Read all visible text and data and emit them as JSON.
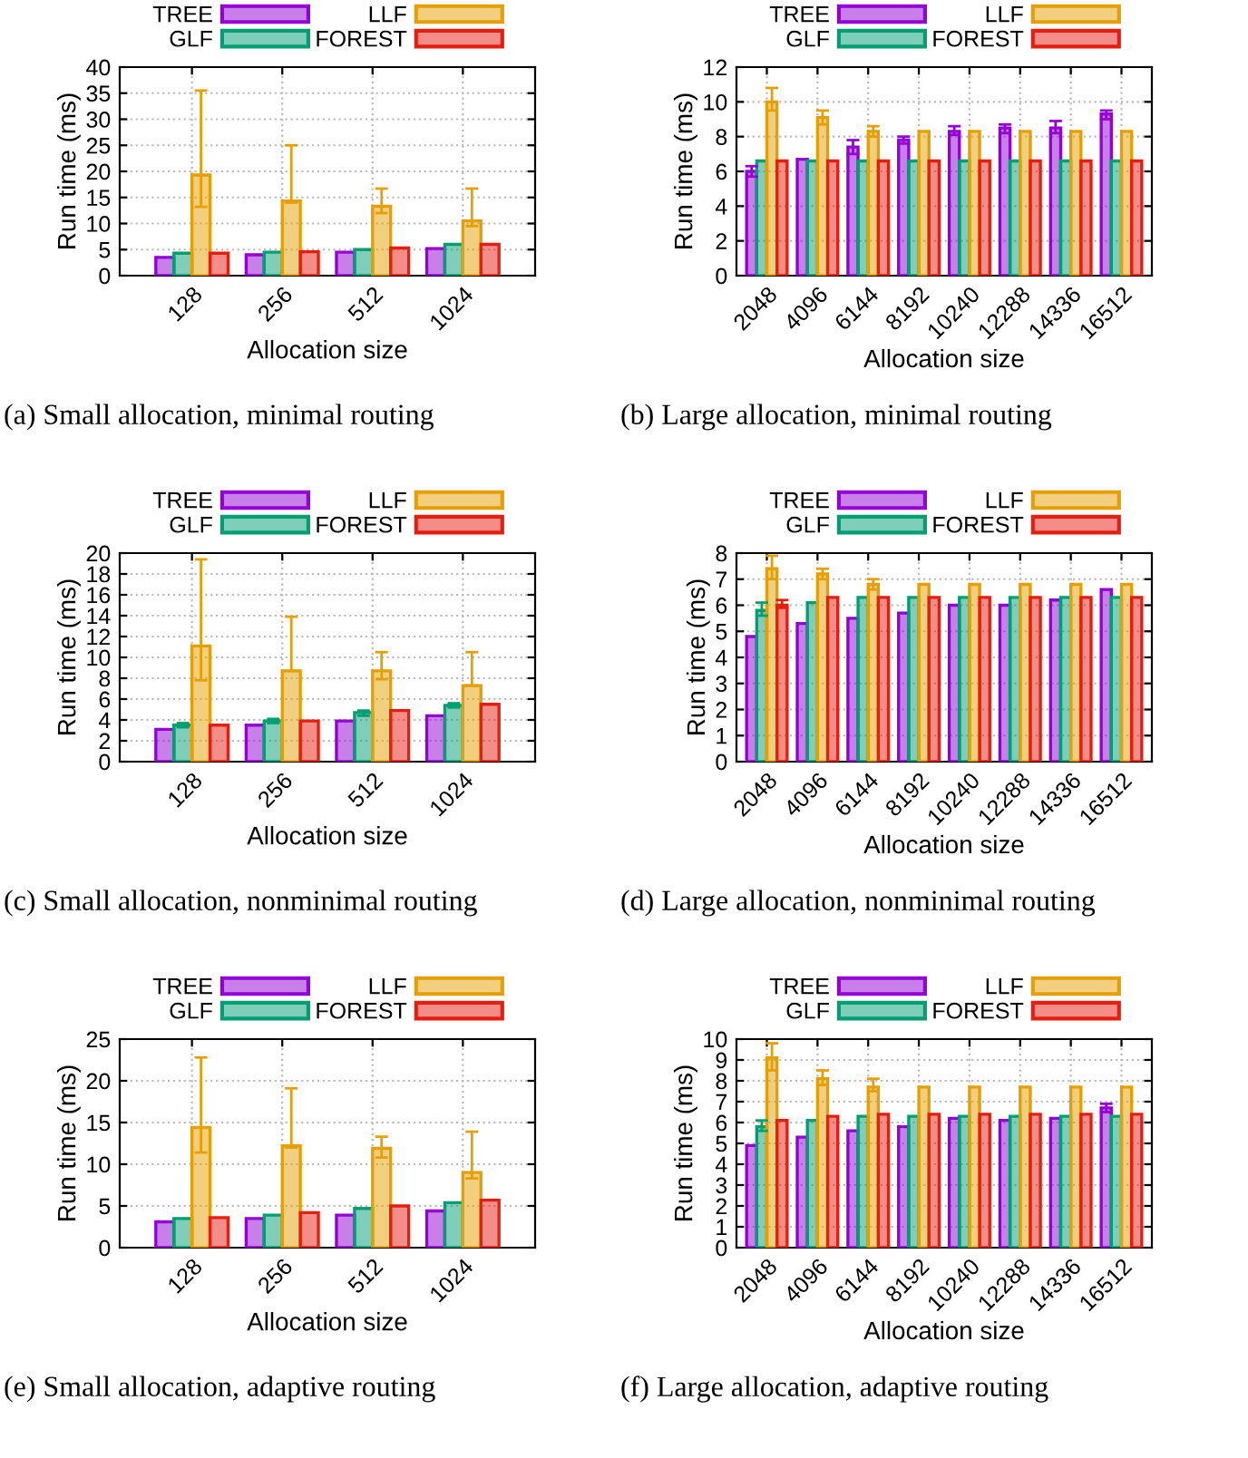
{
  "chart_data": [
    {
      "type": "bar",
      "categories": [
        "128",
        "256",
        "512",
        "1024"
      ],
      "xlabel": "Allocation size",
      "ylabel": "Run time (ms)",
      "ylim": [
        0,
        40
      ],
      "yticks": [
        0,
        5,
        10,
        15,
        20,
        25,
        30,
        35,
        40
      ],
      "grid": true,
      "legend": "top",
      "annotations": [
        "(a) Small allocation, minimal routing"
      ],
      "series": [
        {
          "name": "TREE",
          "color": "#9400d3",
          "values": [
            3.5,
            4.0,
            4.5,
            5.2
          ]
        },
        {
          "name": "GLF",
          "color": "#009e73",
          "values": [
            4.3,
            4.5,
            5.0,
            6.0
          ]
        },
        {
          "name": "LLF",
          "color": "#e69f00",
          "values": [
            19.3,
            14.3,
            13.3,
            10.5
          ],
          "errors": [
            [
              13.2,
              35.5
            ],
            [
              14.0,
              25.0
            ],
            [
              12.0,
              16.7
            ],
            [
              9.5,
              16.7
            ]
          ]
        },
        {
          "name": "FOREST",
          "color": "#e51e10",
          "values": [
            4.3,
            4.6,
            5.3,
            6.0
          ]
        }
      ]
    },
    {
      "type": "bar",
      "categories": [
        "2048",
        "4096",
        "6144",
        "8192",
        "10240",
        "12288",
        "14336",
        "16512"
      ],
      "xlabel": "Allocation size",
      "ylabel": "Run time (ms)",
      "ylim": [
        0,
        12
      ],
      "yticks": [
        0,
        2,
        4,
        6,
        8,
        10,
        12
      ],
      "grid": true,
      "legend": "top",
      "annotations": [
        "(b) Large allocation, minimal routing"
      ],
      "series": [
        {
          "name": "TREE",
          "color": "#9400d3",
          "values": [
            6.0,
            6.7,
            7.4,
            7.8,
            8.3,
            8.5,
            8.5,
            9.3
          ],
          "errors": [
            [
              5.7,
              6.3
            ],
            null,
            [
              7.0,
              7.8
            ],
            [
              7.6,
              8.0
            ],
            [
              8.1,
              8.6
            ],
            [
              8.2,
              8.7
            ],
            [
              8.2,
              8.9
            ],
            [
              9.0,
              9.5
            ]
          ]
        },
        {
          "name": "GLF",
          "color": "#009e73",
          "values": [
            6.6,
            6.6,
            6.6,
            6.6,
            6.6,
            6.6,
            6.6,
            6.6
          ]
        },
        {
          "name": "LLF",
          "color": "#e69f00",
          "values": [
            10.0,
            9.1,
            8.3,
            8.3,
            8.3,
            8.3,
            8.3,
            8.3
          ],
          "errors": [
            [
              9.5,
              10.8
            ],
            [
              8.7,
              9.5
            ],
            [
              8.0,
              8.6
            ],
            null,
            null,
            null,
            null,
            null
          ]
        },
        {
          "name": "FOREST",
          "color": "#e51e10",
          "values": [
            6.6,
            6.6,
            6.6,
            6.6,
            6.6,
            6.6,
            6.6,
            6.6
          ]
        }
      ]
    },
    {
      "type": "bar",
      "categories": [
        "128",
        "256",
        "512",
        "1024"
      ],
      "xlabel": "Allocation size",
      "ylabel": "Run time (ms)",
      "ylim": [
        0,
        20
      ],
      "yticks": [
        0,
        2,
        4,
        6,
        8,
        10,
        12,
        14,
        16,
        18,
        20
      ],
      "grid": true,
      "legend": "top",
      "annotations": [
        "(c) Small allocation, nonminimal routing"
      ],
      "series": [
        {
          "name": "TREE",
          "color": "#9400d3",
          "values": [
            3.1,
            3.5,
            3.9,
            4.4
          ]
        },
        {
          "name": "GLF",
          "color": "#009e73",
          "values": [
            3.5,
            3.9,
            4.7,
            5.4
          ],
          "errors": [
            [
              3.3,
              3.7
            ],
            [
              3.7,
              4.1
            ],
            [
              4.4,
              4.9
            ],
            [
              5.2,
              5.6
            ]
          ]
        },
        {
          "name": "LLF",
          "color": "#e69f00",
          "values": [
            11.1,
            8.7,
            8.7,
            7.3
          ],
          "errors": [
            [
              7.8,
              19.4
            ],
            [
              8.7,
              13.9
            ],
            [
              7.9,
              10.5
            ],
            [
              7.3,
              10.5
            ]
          ]
        },
        {
          "name": "FOREST",
          "color": "#e51e10",
          "values": [
            3.5,
            3.9,
            4.9,
            5.5
          ]
        }
      ]
    },
    {
      "type": "bar",
      "categories": [
        "2048",
        "4096",
        "6144",
        "8192",
        "10240",
        "12288",
        "14336",
        "16512"
      ],
      "xlabel": "Allocation size",
      "ylabel": "Run time (ms)",
      "ylim": [
        0,
        8
      ],
      "yticks": [
        0,
        1,
        2,
        3,
        4,
        5,
        6,
        7,
        8
      ],
      "grid": true,
      "legend": "top",
      "annotations": [
        "(d) Large allocation, nonminimal routing"
      ],
      "series": [
        {
          "name": "TREE",
          "color": "#9400d3",
          "values": [
            4.8,
            5.3,
            5.5,
            5.7,
            6.0,
            6.0,
            6.2,
            6.6
          ]
        },
        {
          "name": "GLF",
          "color": "#009e73",
          "values": [
            5.8,
            6.1,
            6.3,
            6.3,
            6.3,
            6.3,
            6.3,
            6.3
          ],
          "errors": [
            [
              5.6,
              6.1
            ],
            null,
            null,
            null,
            null,
            null,
            null,
            null
          ]
        },
        {
          "name": "LLF",
          "color": "#e69f00",
          "values": [
            7.4,
            7.2,
            6.8,
            6.8,
            6.8,
            6.8,
            6.8,
            6.8
          ],
          "errors": [
            [
              7.0,
              7.9
            ],
            [
              7.0,
              7.4
            ],
            [
              6.6,
              7.0
            ],
            null,
            null,
            null,
            null,
            null
          ]
        },
        {
          "name": "FOREST",
          "color": "#e51e10",
          "values": [
            6.0,
            6.3,
            6.3,
            6.3,
            6.3,
            6.3,
            6.3,
            6.3
          ],
          "errors": [
            [
              5.9,
              6.2
            ],
            null,
            null,
            null,
            null,
            null,
            null,
            null
          ]
        }
      ]
    },
    {
      "type": "bar",
      "categories": [
        "128",
        "256",
        "512",
        "1024"
      ],
      "xlabel": "Allocation size",
      "ylabel": "Run time (ms)",
      "ylim": [
        0,
        25
      ],
      "yticks": [
        0,
        5,
        10,
        15,
        20,
        25
      ],
      "grid": true,
      "legend": "top",
      "annotations": [
        "(e) Small allocation, adaptive routing"
      ],
      "series": [
        {
          "name": "TREE",
          "color": "#9400d3",
          "values": [
            3.1,
            3.5,
            3.9,
            4.4
          ]
        },
        {
          "name": "GLF",
          "color": "#009e73",
          "values": [
            3.5,
            3.9,
            4.7,
            5.4
          ]
        },
        {
          "name": "LLF",
          "color": "#e69f00",
          "values": [
            14.4,
            12.2,
            11.9,
            9.0
          ],
          "errors": [
            [
              11.4,
              22.8
            ],
            [
              12.0,
              19.1
            ],
            [
              10.8,
              13.3
            ],
            [
              8.3,
              13.9
            ]
          ]
        },
        {
          "name": "FOREST",
          "color": "#e51e10",
          "values": [
            3.6,
            4.2,
            5.0,
            5.7
          ]
        }
      ]
    },
    {
      "type": "bar",
      "categories": [
        "2048",
        "4096",
        "6144",
        "8192",
        "10240",
        "12288",
        "14336",
        "16512"
      ],
      "xlabel": "Allocation size",
      "ylabel": "Run time (ms)",
      "ylim": [
        0,
        10
      ],
      "yticks": [
        0,
        1,
        2,
        3,
        4,
        5,
        6,
        7,
        8,
        9,
        10
      ],
      "grid": true,
      "legend": "top",
      "annotations": [
        "(f) Large allocation, adaptive routing"
      ],
      "series": [
        {
          "name": "TREE",
          "color": "#9400d3",
          "values": [
            4.9,
            5.3,
            5.6,
            5.8,
            6.2,
            6.1,
            6.2,
            6.7
          ],
          "errors": [
            null,
            null,
            null,
            null,
            null,
            null,
            null,
            [
              6.5,
              6.9
            ]
          ]
        },
        {
          "name": "GLF",
          "color": "#009e73",
          "values": [
            5.8,
            6.1,
            6.3,
            6.3,
            6.3,
            6.3,
            6.3,
            6.3
          ],
          "errors": [
            [
              5.6,
              6.1
            ],
            null,
            null,
            null,
            null,
            null,
            null,
            null
          ]
        },
        {
          "name": "LLF",
          "color": "#e69f00",
          "values": [
            9.1,
            8.1,
            7.7,
            7.7,
            7.7,
            7.7,
            7.7,
            7.7
          ],
          "errors": [
            [
              8.5,
              9.8
            ],
            [
              7.8,
              8.5
            ],
            [
              7.5,
              8.1
            ],
            null,
            null,
            null,
            null,
            null
          ]
        },
        {
          "name": "FOREST",
          "color": "#e51e10",
          "values": [
            6.1,
            6.3,
            6.4,
            6.4,
            6.4,
            6.4,
            6.4,
            6.4
          ]
        }
      ]
    }
  ]
}
